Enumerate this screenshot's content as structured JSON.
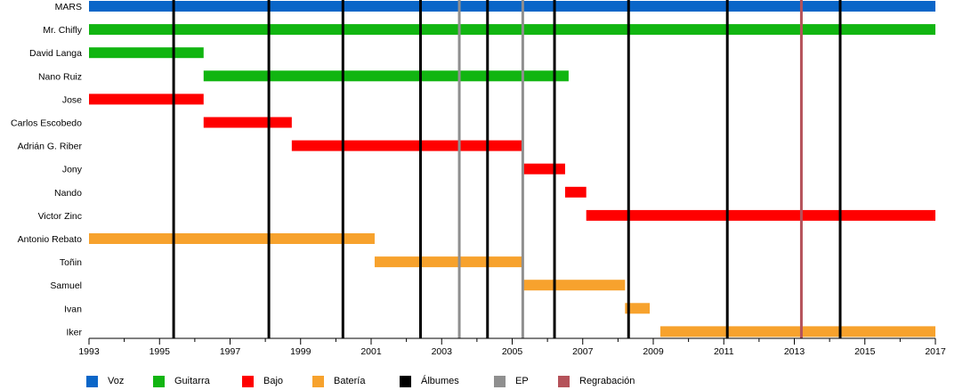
{
  "chart_data": {
    "type": "bar",
    "subtype": "timeline",
    "title": "",
    "xlabel": "",
    "ylabel": "",
    "xlim": [
      1993,
      2017
    ],
    "x_ticks": [
      1993,
      1995,
      1997,
      1999,
      2001,
      2003,
      2005,
      2007,
      2009,
      2011,
      2013,
      2015,
      2017
    ],
    "colors": {
      "Voz": "#0a66c8",
      "Guitarra": "#11b511",
      "Bajo": "#ff0000",
      "Batería": "#f7a22d",
      "Álbumes": "#000000",
      "EP": "#8f8f8f",
      "Regrabación": "#b5525a"
    },
    "members": [
      {
        "name": "MARS",
        "role": "Voz",
        "start": 1993.0,
        "end": 2017.0
      },
      {
        "name": "Mr. Chifly",
        "role": "Guitarra",
        "start": 1993.0,
        "end": 2017.0
      },
      {
        "name": "David Langa",
        "role": "Guitarra",
        "start": 1993.0,
        "end": 1996.25
      },
      {
        "name": "Nano Ruiz",
        "role": "Guitarra",
        "start": 1996.25,
        "end": 2006.6
      },
      {
        "name": "Jose",
        "role": "Bajo",
        "start": 1993.0,
        "end": 1996.25
      },
      {
        "name": "Carlos Escobedo",
        "role": "Bajo",
        "start": 1996.25,
        "end": 1998.75
      },
      {
        "name": "Adrián G. Riber",
        "role": "Bajo",
        "start": 1998.75,
        "end": 2005.3
      },
      {
        "name": "Jony",
        "role": "Bajo",
        "start": 2005.3,
        "end": 2006.5
      },
      {
        "name": "Nando",
        "role": "Bajo",
        "start": 2006.5,
        "end": 2007.1
      },
      {
        "name": "Victor Zinc",
        "role": "Bajo",
        "start": 2007.1,
        "end": 2017.0
      },
      {
        "name": "Antonio Rebato",
        "role": "Batería",
        "start": 1993.0,
        "end": 2001.1
      },
      {
        "name": "Toñin",
        "role": "Batería",
        "start": 2001.1,
        "end": 2005.3
      },
      {
        "name": "Samuel",
        "role": "Batería",
        "start": 2005.3,
        "end": 2008.2
      },
      {
        "name": "Ivan",
        "role": "Batería",
        "start": 2008.2,
        "end": 2008.9
      },
      {
        "name": "Iker",
        "role": "Batería",
        "start": 2009.2,
        "end": 2017.0
      }
    ],
    "events": [
      {
        "type": "Álbumes",
        "x": 1995.4
      },
      {
        "type": "Álbumes",
        "x": 1998.1
      },
      {
        "type": "Álbumes",
        "x": 2000.2
      },
      {
        "type": "Álbumes",
        "x": 2002.4
      },
      {
        "type": "EP",
        "x": 2003.5
      },
      {
        "type": "Álbumes",
        "x": 2004.3
      },
      {
        "type": "EP",
        "x": 2005.3
      },
      {
        "type": "Álbumes",
        "x": 2006.2
      },
      {
        "type": "Álbumes",
        "x": 2008.3
      },
      {
        "type": "Álbumes",
        "x": 2011.1
      },
      {
        "type": "Regrabación",
        "x": 2013.2
      },
      {
        "type": "Álbumes",
        "x": 2014.3
      }
    ],
    "legend": {
      "placement": "bottom",
      "entries": [
        "Voz",
        "Guitarra",
        "Bajo",
        "Batería",
        "Álbumes",
        "EP",
        "Regrabación"
      ]
    }
  }
}
